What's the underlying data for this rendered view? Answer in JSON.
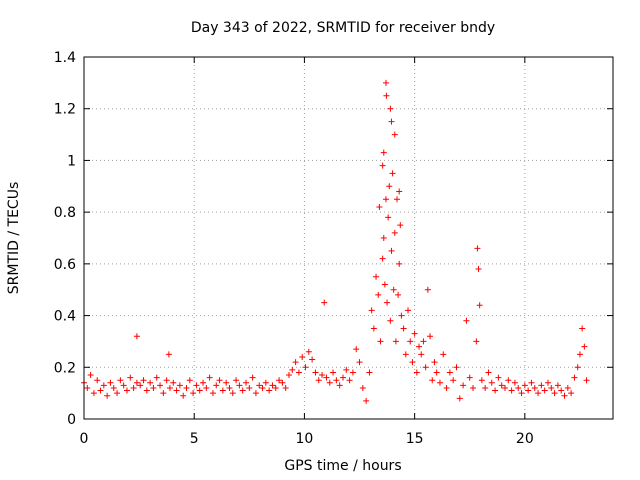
{
  "chart_data": {
    "type": "scatter",
    "title": "Day 343 of 2022, SRMTID for receiver bndy",
    "xlabel": "GPS time / hours",
    "ylabel": "SRMTID / TECUs",
    "xlim": [
      0,
      24
    ],
    "ylim": [
      0,
      1.4
    ],
    "xticks": [
      0,
      5,
      10,
      15,
      20
    ],
    "xtick_labels": [
      "0",
      "5",
      "10",
      "15",
      "20"
    ],
    "yticks": [
      0,
      0.2,
      0.4,
      0.6,
      0.8,
      1.0,
      1.2,
      1.4
    ],
    "ytick_labels": [
      "0",
      "0.2",
      "0.4",
      "0.6",
      "0.8",
      "1",
      "1.2",
      "1.4"
    ],
    "grid": true,
    "marker": "plus",
    "color": "#ff0000",
    "series": [
      {
        "name": "SRMTID",
        "x": [
          0.0,
          0.15,
          0.3,
          0.45,
          0.6,
          0.75,
          0.9,
          1.05,
          1.2,
          1.35,
          1.5,
          1.65,
          1.8,
          1.95,
          2.1,
          2.25,
          2.4,
          2.4,
          2.55,
          2.7,
          2.85,
          3.0,
          3.15,
          3.3,
          3.45,
          3.6,
          3.75,
          3.85,
          3.9,
          4.05,
          4.2,
          4.35,
          4.5,
          4.65,
          4.8,
          4.95,
          5.1,
          5.25,
          5.4,
          5.55,
          5.7,
          5.85,
          6.0,
          6.15,
          6.3,
          6.45,
          6.6,
          6.75,
          6.9,
          7.05,
          7.2,
          7.35,
          7.5,
          7.65,
          7.8,
          7.95,
          8.1,
          8.25,
          8.4,
          8.55,
          8.7,
          8.85,
          9.0,
          9.15,
          9.3,
          9.45,
          9.6,
          9.75,
          9.9,
          10.05,
          10.2,
          10.35,
          10.5,
          10.65,
          10.8,
          10.9,
          11.0,
          11.15,
          11.3,
          11.45,
          11.6,
          11.75,
          11.9,
          12.05,
          12.2,
          12.35,
          12.5,
          12.65,
          12.8,
          12.95,
          13.05,
          13.15,
          13.25,
          13.35,
          13.45,
          13.55,
          13.6,
          13.65,
          13.7,
          13.75,
          13.8,
          13.85,
          13.9,
          13.95,
          14.0,
          14.05,
          14.1,
          14.15,
          14.2,
          14.25,
          14.3,
          14.35,
          14.4,
          14.5,
          14.6,
          14.7,
          14.8,
          14.9,
          15.0,
          15.1,
          15.2,
          15.3,
          15.4,
          15.5,
          15.6,
          15.7,
          15.8,
          15.9,
          16.0,
          16.15,
          16.3,
          16.45,
          16.6,
          16.75,
          16.9,
          17.05,
          17.2,
          17.35,
          17.5,
          17.65,
          17.8,
          17.85,
          17.9,
          17.95,
          18.05,
          18.2,
          18.35,
          18.5,
          18.65,
          18.8,
          18.95,
          19.1,
          19.25,
          19.4,
          19.55,
          19.7,
          19.85,
          20.0,
          20.15,
          20.3,
          20.45,
          20.6,
          20.75,
          20.9,
          21.05,
          21.2,
          21.35,
          21.5,
          21.65,
          21.8,
          21.95,
          22.1,
          22.25,
          22.4,
          22.5,
          22.6,
          22.7,
          22.8,
          13.7,
          13.72,
          13.9,
          13.95,
          14.1,
          13.6,
          13.55,
          14.3,
          13.4
        ],
        "y": [
          0.14,
          0.12,
          0.17,
          0.1,
          0.15,
          0.11,
          0.13,
          0.09,
          0.14,
          0.12,
          0.1,
          0.15,
          0.13,
          0.11,
          0.16,
          0.12,
          0.14,
          0.32,
          0.13,
          0.15,
          0.11,
          0.14,
          0.12,
          0.16,
          0.13,
          0.1,
          0.15,
          0.25,
          0.12,
          0.14,
          0.11,
          0.13,
          0.09,
          0.12,
          0.15,
          0.1,
          0.13,
          0.11,
          0.14,
          0.12,
          0.16,
          0.1,
          0.13,
          0.15,
          0.11,
          0.14,
          0.12,
          0.1,
          0.15,
          0.13,
          0.11,
          0.14,
          0.12,
          0.16,
          0.1,
          0.13,
          0.12,
          0.14,
          0.11,
          0.13,
          0.12,
          0.15,
          0.14,
          0.12,
          0.17,
          0.19,
          0.22,
          0.18,
          0.24,
          0.2,
          0.26,
          0.23,
          0.18,
          0.15,
          0.17,
          0.45,
          0.16,
          0.14,
          0.18,
          0.15,
          0.13,
          0.16,
          0.19,
          0.15,
          0.18,
          0.27,
          0.22,
          0.12,
          0.07,
          0.18,
          0.42,
          0.35,
          0.55,
          0.48,
          0.3,
          0.62,
          0.7,
          0.52,
          0.85,
          0.45,
          0.78,
          0.9,
          0.38,
          0.65,
          0.95,
          0.5,
          0.72,
          0.3,
          0.85,
          0.48,
          0.6,
          0.75,
          0.4,
          0.35,
          0.25,
          0.42,
          0.3,
          0.22,
          0.33,
          0.18,
          0.28,
          0.25,
          0.3,
          0.2,
          0.5,
          0.32,
          0.15,
          0.22,
          0.18,
          0.14,
          0.25,
          0.12,
          0.18,
          0.15,
          0.2,
          0.08,
          0.13,
          0.38,
          0.16,
          0.12,
          0.3,
          0.66,
          0.58,
          0.44,
          0.15,
          0.12,
          0.18,
          0.14,
          0.11,
          0.16,
          0.13,
          0.12,
          0.15,
          0.11,
          0.14,
          0.12,
          0.1,
          0.13,
          0.11,
          0.14,
          0.12,
          0.1,
          0.13,
          0.11,
          0.14,
          0.12,
          0.1,
          0.13,
          0.11,
          0.09,
          0.12,
          0.1,
          0.16,
          0.2,
          0.25,
          0.35,
          0.28,
          0.15,
          1.3,
          1.25,
          1.2,
          1.15,
          1.1,
          1.03,
          0.98,
          0.88,
          0.82
        ]
      }
    ]
  }
}
